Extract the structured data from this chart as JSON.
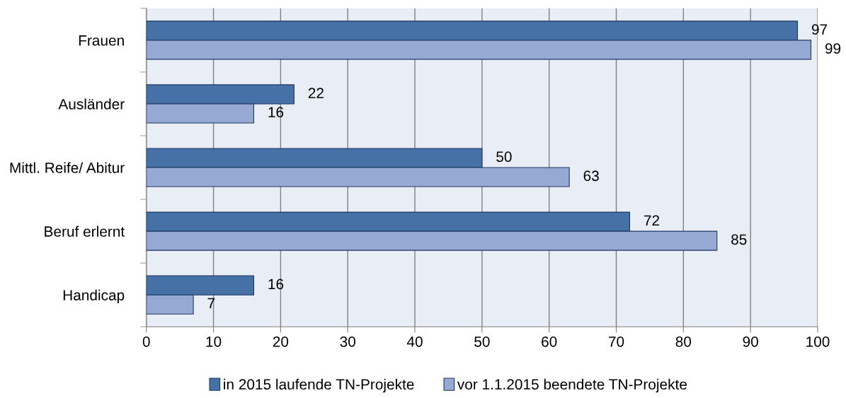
{
  "chart_data": {
    "type": "bar",
    "orientation": "horizontal",
    "categories": [
      "Frauen",
      "Ausländer",
      "Mittl. Reife/ Abitur",
      "Beruf erlernt",
      "Handicap"
    ],
    "series": [
      {
        "name": "in 2015 laufende TN-Projekte",
        "color": "#4571a6",
        "values": [
          97,
          22,
          50,
          72,
          16
        ]
      },
      {
        "name": "vor 1.1.2015 beendete TN-Projekte",
        "color": "#95a9d3",
        "values": [
          99,
          16,
          63,
          85,
          7
        ]
      }
    ],
    "xlim": [
      0,
      100
    ],
    "xticks": [
      0,
      10,
      20,
      30,
      40,
      50,
      60,
      70,
      80,
      90,
      100
    ],
    "grid": "x",
    "legend": "bottom",
    "data_labels": true
  }
}
